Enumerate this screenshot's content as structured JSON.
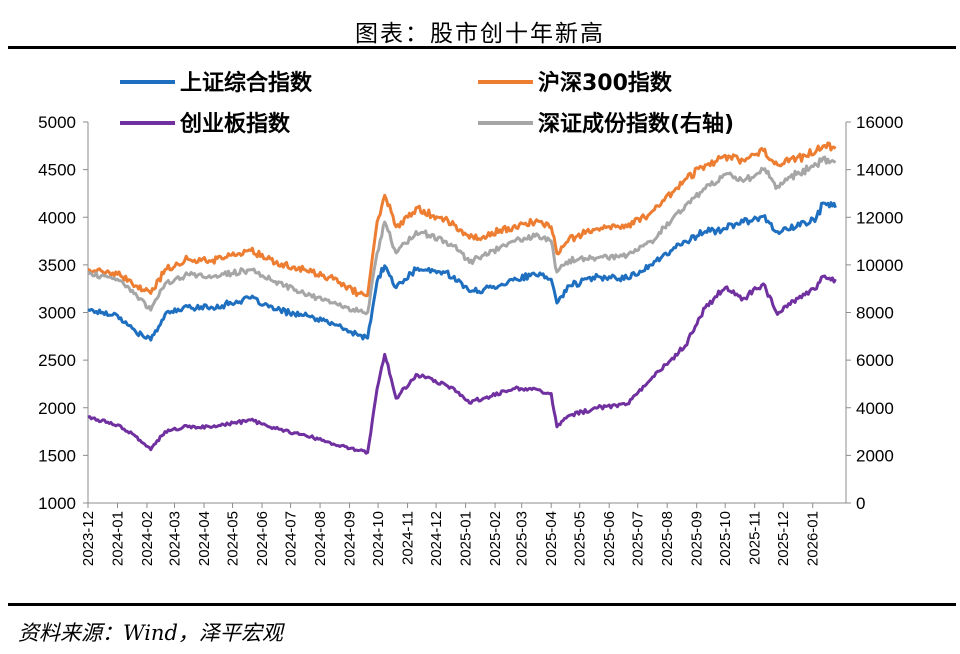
{
  "title": "图表：股市创十年新高",
  "source": "资料来源：Wind，泽平宏观",
  "chart_data": {
    "type": "line",
    "x": [
      "2023-12",
      "2024-01",
      "2024-02",
      "2024-03",
      "2024-04",
      "2024-05",
      "2024-06",
      "2024-07",
      "2024-08",
      "2024-09",
      "2024-10",
      "2024-11",
      "2024-12",
      "2025-01",
      "2025-02",
      "2025-03",
      "2025-04",
      "2025-05",
      "2025-06",
      "2025-07",
      "2025-08",
      "2025-09",
      "2025-10",
      "2025-11",
      "2025-12",
      "2026-01"
    ],
    "y_left": {
      "ylim": [
        1000,
        5000
      ],
      "ticks": [
        1000,
        1500,
        2000,
        2500,
        3000,
        3500,
        4000,
        4500,
        5000
      ]
    },
    "y_right": {
      "ylim": [
        0,
        16000
      ],
      "ticks": [
        0,
        2000,
        4000,
        6000,
        8000,
        10000,
        12000,
        14000,
        16000
      ]
    },
    "grid": false,
    "legend_position": "top",
    "series": [
      {
        "name": "上证综合指数",
        "axis": "left",
        "color": "#1f6fc0",
        "anchors": [
          [
            "2023-12-01",
            3030
          ],
          [
            "2024-01-01",
            2970
          ],
          [
            "2024-01-20",
            2800
          ],
          [
            "2024-02-05",
            2710
          ],
          [
            "2024-02-20",
            2980
          ],
          [
            "2024-03-15",
            3060
          ],
          [
            "2024-04-10",
            3050
          ],
          [
            "2024-05-20",
            3150
          ],
          [
            "2024-06-15",
            3030
          ],
          [
            "2024-07-15",
            2970
          ],
          [
            "2024-08-15",
            2880
          ],
          [
            "2024-09-10",
            2760
          ],
          [
            "2024-09-20",
            2730
          ],
          [
            "2024-09-30",
            3330
          ],
          [
            "2024-10-08",
            3490
          ],
          [
            "2024-10-20",
            3260
          ],
          [
            "2024-11-10",
            3450
          ],
          [
            "2024-12-10",
            3420
          ],
          [
            "2024-12-20",
            3380
          ],
          [
            "2025-01-05",
            3220
          ],
          [
            "2025-01-20",
            3240
          ],
          [
            "2025-02-20",
            3340
          ],
          [
            "2025-03-15",
            3400
          ],
          [
            "2025-04-01",
            3350
          ],
          [
            "2025-04-07",
            3100
          ],
          [
            "2025-04-20",
            3280
          ],
          [
            "2025-05-20",
            3380
          ],
          [
            "2025-06-20",
            3360
          ],
          [
            "2025-07-15",
            3500
          ],
          [
            "2025-08-20",
            3750
          ],
          [
            "2025-09-10",
            3850
          ],
          [
            "2025-10-01",
            3880
          ],
          [
            "2025-10-20",
            3950
          ],
          [
            "2025-11-10",
            4010
          ],
          [
            "2025-11-25",
            3850
          ],
          [
            "2025-12-15",
            3900
          ],
          [
            "2026-01-05",
            4000
          ],
          [
            "2026-01-12",
            4150
          ],
          [
            "2026-01-25",
            4100
          ]
        ]
      },
      {
        "name": "沪深300指数",
        "axis": "left",
        "color": "#ed7d31",
        "anchors": [
          [
            "2023-12-01",
            3450
          ],
          [
            "2024-01-01",
            3400
          ],
          [
            "2024-01-20",
            3280
          ],
          [
            "2024-02-05",
            3200
          ],
          [
            "2024-02-20",
            3450
          ],
          [
            "2024-03-15",
            3560
          ],
          [
            "2024-04-10",
            3550
          ],
          [
            "2024-05-20",
            3650
          ],
          [
            "2024-06-15",
            3520
          ],
          [
            "2024-07-15",
            3450
          ],
          [
            "2024-08-15",
            3350
          ],
          [
            "2024-09-10",
            3200
          ],
          [
            "2024-09-20",
            3180
          ],
          [
            "2024-09-30",
            3950
          ],
          [
            "2024-10-08",
            4230
          ],
          [
            "2024-10-20",
            3900
          ],
          [
            "2024-11-10",
            4100
          ],
          [
            "2024-12-10",
            3980
          ],
          [
            "2024-12-20",
            3920
          ],
          [
            "2025-01-05",
            3780
          ],
          [
            "2025-01-20",
            3800
          ],
          [
            "2025-02-20",
            3900
          ],
          [
            "2025-03-15",
            3950
          ],
          [
            "2025-04-01",
            3900
          ],
          [
            "2025-04-07",
            3620
          ],
          [
            "2025-04-20",
            3780
          ],
          [
            "2025-05-20",
            3880
          ],
          [
            "2025-06-20",
            3900
          ],
          [
            "2025-07-15",
            4050
          ],
          [
            "2025-08-20",
            4400
          ],
          [
            "2025-09-10",
            4550
          ],
          [
            "2025-10-01",
            4650
          ],
          [
            "2025-10-20",
            4600
          ],
          [
            "2025-11-10",
            4700
          ],
          [
            "2025-11-25",
            4550
          ],
          [
            "2025-12-15",
            4620
          ],
          [
            "2026-01-05",
            4700
          ],
          [
            "2026-01-12",
            4750
          ],
          [
            "2026-01-25",
            4720
          ]
        ]
      },
      {
        "name": "创业板指数",
        "axis": "left",
        "color": "#7030a0",
        "anchors": [
          [
            "2023-12-01",
            1900
          ],
          [
            "2024-01-01",
            1820
          ],
          [
            "2024-01-20",
            1700
          ],
          [
            "2024-02-05",
            1560
          ],
          [
            "2024-02-20",
            1750
          ],
          [
            "2024-03-15",
            1800
          ],
          [
            "2024-04-10",
            1800
          ],
          [
            "2024-05-20",
            1870
          ],
          [
            "2024-06-15",
            1780
          ],
          [
            "2024-07-15",
            1720
          ],
          [
            "2024-08-15",
            1620
          ],
          [
            "2024-09-10",
            1550
          ],
          [
            "2024-09-20",
            1530
          ],
          [
            "2024-09-30",
            2200
          ],
          [
            "2024-10-08",
            2560
          ],
          [
            "2024-10-20",
            2100
          ],
          [
            "2024-11-10",
            2350
          ],
          [
            "2024-12-10",
            2250
          ],
          [
            "2024-12-20",
            2200
          ],
          [
            "2025-01-05",
            2050
          ],
          [
            "2025-01-20",
            2100
          ],
          [
            "2025-02-20",
            2200
          ],
          [
            "2025-03-15",
            2200
          ],
          [
            "2025-04-01",
            2150
          ],
          [
            "2025-04-07",
            1800
          ],
          [
            "2025-04-20",
            1920
          ],
          [
            "2025-05-20",
            2000
          ],
          [
            "2025-06-20",
            2040
          ],
          [
            "2025-07-15",
            2300
          ],
          [
            "2025-08-20",
            2650
          ],
          [
            "2025-09-10",
            3050
          ],
          [
            "2025-10-01",
            3260
          ],
          [
            "2025-10-20",
            3150
          ],
          [
            "2025-11-10",
            3300
          ],
          [
            "2025-11-25",
            2980
          ],
          [
            "2025-12-15",
            3150
          ],
          [
            "2026-01-05",
            3250
          ],
          [
            "2026-01-12",
            3380
          ],
          [
            "2026-01-25",
            3350
          ]
        ]
      },
      {
        "name": "深证成份指数(右轴)",
        "axis": "right",
        "color": "#a6a6a6",
        "anchors": [
          [
            "2023-12-01",
            9600
          ],
          [
            "2024-01-01",
            9400
          ],
          [
            "2024-01-20",
            8800
          ],
          [
            "2024-02-05",
            8100
          ],
          [
            "2024-02-20",
            9200
          ],
          [
            "2024-03-15",
            9600
          ],
          [
            "2024-04-10",
            9500
          ],
          [
            "2024-05-20",
            9800
          ],
          [
            "2024-06-15",
            9300
          ],
          [
            "2024-07-15",
            8800
          ],
          [
            "2024-08-15",
            8400
          ],
          [
            "2024-09-10",
            8050
          ],
          [
            "2024-09-20",
            8000
          ],
          [
            "2024-09-30",
            10500
          ],
          [
            "2024-10-08",
            11800
          ],
          [
            "2024-10-20",
            10500
          ],
          [
            "2024-11-10",
            11400
          ],
          [
            "2024-12-10",
            11000
          ],
          [
            "2024-12-20",
            10800
          ],
          [
            "2025-01-05",
            10100
          ],
          [
            "2025-01-20",
            10400
          ],
          [
            "2025-02-20",
            11000
          ],
          [
            "2025-03-15",
            11200
          ],
          [
            "2025-04-01",
            11000
          ],
          [
            "2025-04-07",
            9700
          ],
          [
            "2025-04-20",
            10200
          ],
          [
            "2025-05-20",
            10300
          ],
          [
            "2025-06-20",
            10400
          ],
          [
            "2025-07-15",
            11000
          ],
          [
            "2025-08-20",
            12500
          ],
          [
            "2025-09-10",
            13200
          ],
          [
            "2025-10-01",
            13800
          ],
          [
            "2025-10-20",
            13500
          ],
          [
            "2025-11-10",
            14000
          ],
          [
            "2025-11-25",
            13300
          ],
          [
            "2025-12-15",
            13800
          ],
          [
            "2026-01-05",
            14200
          ],
          [
            "2026-01-12",
            14500
          ],
          [
            "2026-01-25",
            14300
          ]
        ]
      }
    ]
  }
}
